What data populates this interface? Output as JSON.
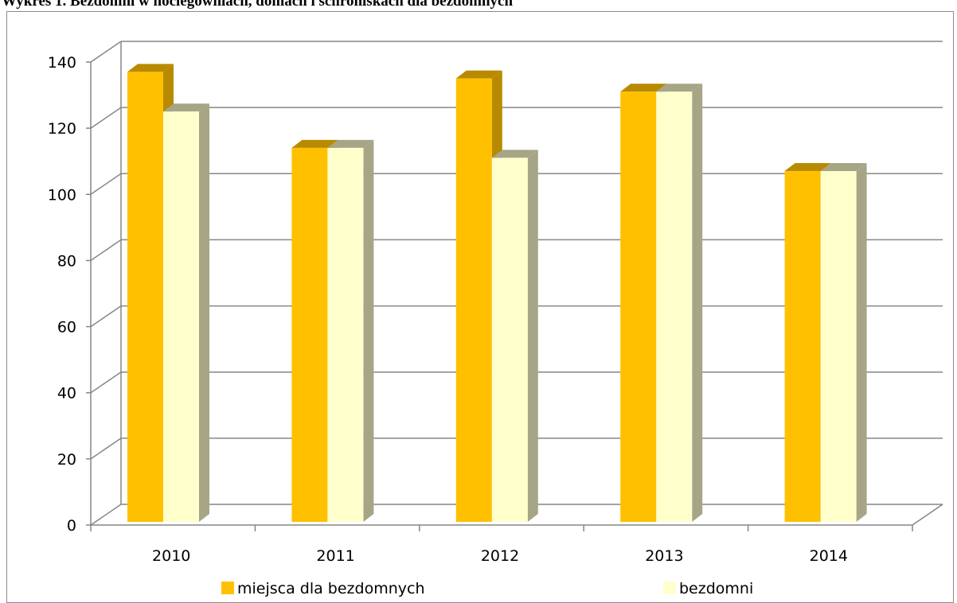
{
  "caption": "Wykres 1. Bezdomni w noclegowniach, domach i schroniskach dla bezdomnych",
  "chart_data": {
    "type": "bar",
    "three_d": true,
    "categories": [
      "2010",
      "2011",
      "2012",
      "2013",
      "2014"
    ],
    "series": [
      {
        "name": "miejsca dla bezdomnych",
        "values": [
          138,
          115,
          136,
          132,
          108
        ],
        "color": "#ffc000",
        "shade": "#b88a00"
      },
      {
        "name": "bezdomni",
        "values": [
          126,
          115,
          112,
          132,
          108
        ],
        "color": "#ffffcc",
        "shade": "#a6a687"
      }
    ],
    "y_ticks": [
      "0",
      "20",
      "40",
      "60",
      "80",
      "100",
      "120",
      "140"
    ],
    "ylim": [
      0,
      140
    ],
    "grid": true,
    "legend_position": "bottom",
    "xlabel": "",
    "ylabel": ""
  }
}
